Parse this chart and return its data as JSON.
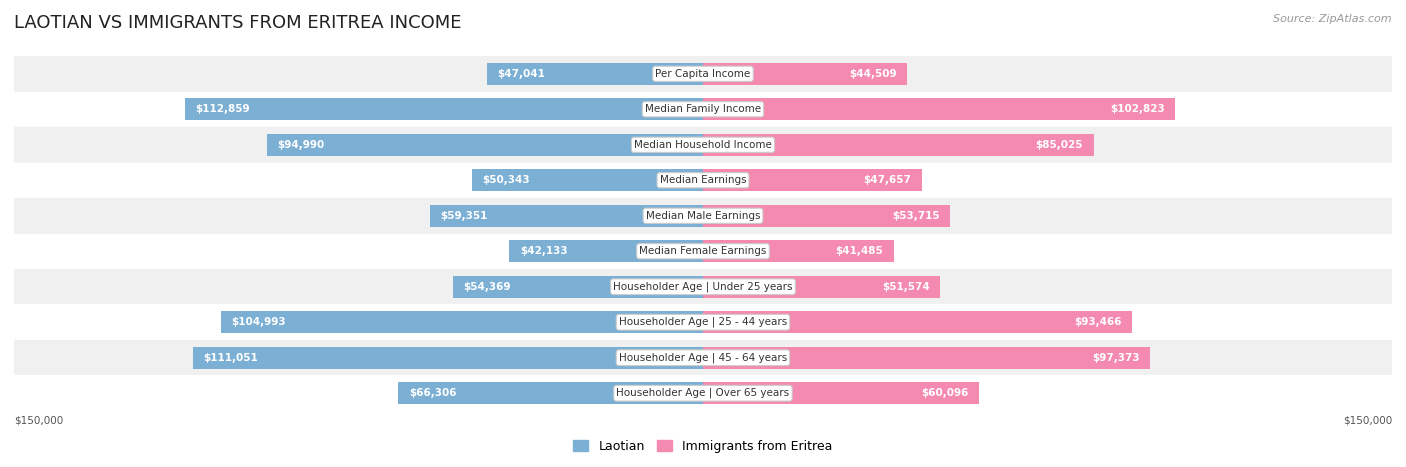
{
  "title": "LAOTIAN VS IMMIGRANTS FROM ERITREA INCOME",
  "source": "Source: ZipAtlas.com",
  "categories": [
    "Per Capita Income",
    "Median Family Income",
    "Median Household Income",
    "Median Earnings",
    "Median Male Earnings",
    "Median Female Earnings",
    "Householder Age | Under 25 years",
    "Householder Age | 25 - 44 years",
    "Householder Age | 45 - 64 years",
    "Householder Age | Over 65 years"
  ],
  "laotian_values": [
    47041,
    112859,
    94990,
    50343,
    59351,
    42133,
    54369,
    104993,
    111051,
    66306
  ],
  "eritrea_values": [
    44509,
    102823,
    85025,
    47657,
    53715,
    41485,
    51574,
    93466,
    97373,
    60096
  ],
  "laotian_labels": [
    "$47,041",
    "$112,859",
    "$94,990",
    "$50,343",
    "$59,351",
    "$42,133",
    "$54,369",
    "$104,993",
    "$111,051",
    "$66,306"
  ],
  "eritrea_labels": [
    "$44,509",
    "$102,823",
    "$85,025",
    "$47,657",
    "$53,715",
    "$41,485",
    "$51,574",
    "$93,466",
    "$97,373",
    "$60,096"
  ],
  "laotian_color": "#7bafd4",
  "eritrea_color": "#f48ab0",
  "label_color_inside": "#ffffff",
  "label_color_outside": "#555555",
  "max_value": 150000,
  "background_color": "#ffffff",
  "row_bg_even": "#f0f0f0",
  "row_bg_odd": "#ffffff",
  "legend_laotian": "Laotian",
  "legend_eritrea": "Immigrants from Eritrea",
  "x_label_left": "$150,000",
  "x_label_right": "$150,000",
  "title_fontsize": 13,
  "category_fontsize": 7.5,
  "value_fontsize": 7.5,
  "legend_fontsize": 9,
  "source_fontsize": 8,
  "inside_threshold": 35000
}
